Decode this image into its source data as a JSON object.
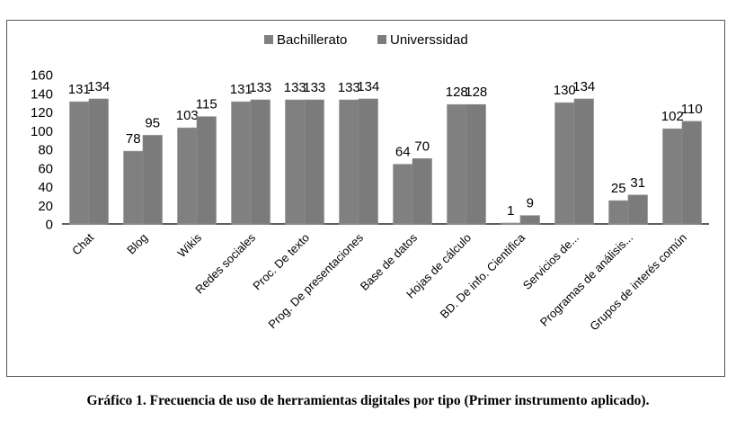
{
  "chart_data": {
    "type": "bar",
    "categories": [
      "Chat",
      "Blog",
      "Wikis",
      "Redes sociales",
      "Proc. De texto",
      "Prog. De presentaciones",
      "Base de datos",
      "Hojas de cálculo",
      "BD. De info. Cientifica",
      "Servicios de...",
      "Programas de análisis...",
      "Grupos de interés común"
    ],
    "series": [
      {
        "name": "Bachillerato",
        "values": [
          131,
          78,
          103,
          131,
          133,
          133,
          64,
          128,
          1,
          130,
          25,
          102
        ]
      },
      {
        "name": "Universsidad",
        "values": [
          134,
          95,
          115,
          133,
          133,
          134,
          70,
          128,
          9,
          134,
          31,
          110
        ]
      }
    ],
    "ylim": [
      0,
      160
    ],
    "yticks": [
      0,
      20,
      40,
      60,
      80,
      100,
      120,
      140,
      160
    ],
    "title": "",
    "xlabel": "",
    "ylabel": "",
    "grid": false,
    "legend": "top",
    "colors": {
      "Bachillerato": "#7f7f7f",
      "Universsidad": "#7a7a7a",
      "label": "#000000",
      "axis": "#000000"
    }
  },
  "caption": {
    "label": "Gráfico 1",
    "text": ". Frecuencia de uso de herramientas digitales por tipo (Primer instrumento aplicado)."
  }
}
